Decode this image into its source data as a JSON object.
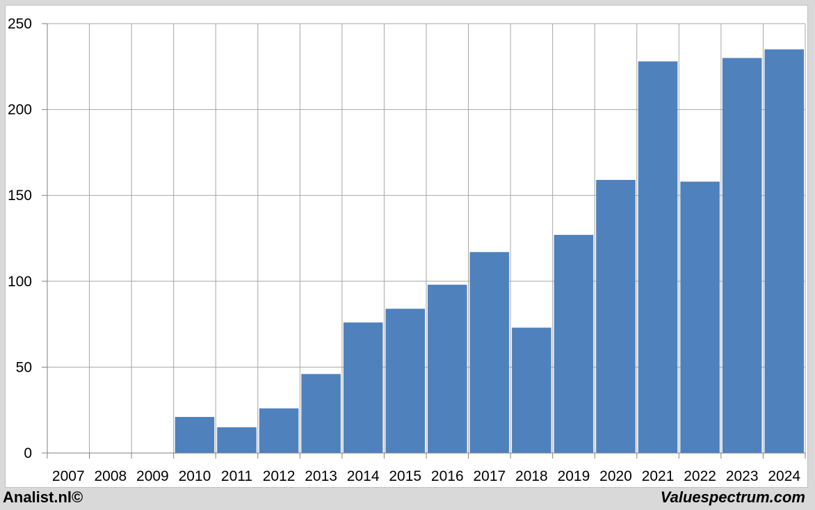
{
  "chart_data": {
    "type": "bar",
    "categories": [
      "2007",
      "2008",
      "2009",
      "2010",
      "2011",
      "2012",
      "2013",
      "2014",
      "2015",
      "2016",
      "2017",
      "2018",
      "2019",
      "2020",
      "2021",
      "2022",
      "2023",
      "2024"
    ],
    "values": [
      null,
      null,
      null,
      21,
      15,
      26,
      46,
      76,
      84,
      98,
      117,
      73,
      127,
      159,
      228,
      158,
      230,
      235
    ],
    "yticks": [
      0,
      50,
      100,
      150,
      200,
      250
    ],
    "ylim": [
      0,
      250
    ],
    "grid": true,
    "bar_color": "#4f81bd",
    "grid_color": "#a6a6a6"
  },
  "footer": {
    "left": "Analist.nl©",
    "right": "Valuespectrum.com"
  }
}
